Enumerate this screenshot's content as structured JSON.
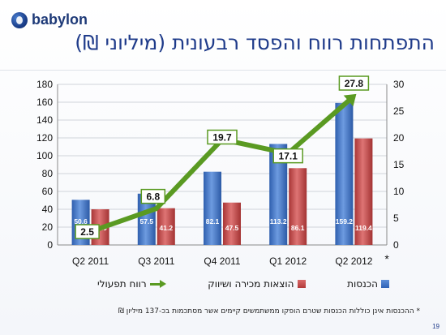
{
  "logo": {
    "text": "babylon"
  },
  "title": "התפתחות רווח והפסד רבעונית (מיליוני ₪)",
  "chart_data": {
    "type": "bar",
    "categories": [
      "Q2 2011",
      "Q3 2011",
      "Q4 2011",
      "Q1 2012",
      "Q2 2012"
    ],
    "series": [
      {
        "name": "הכנסות",
        "values": [
          50.6,
          57.5,
          82.1,
          113.2,
          159.2
        ],
        "axis": "left",
        "color": "#3b6fc4"
      },
      {
        "name": "הוצאות מכירה ושיווק",
        "values": [
          40.0,
          41.2,
          47.5,
          86.1,
          119.4
        ],
        "axis": "left",
        "color": "#c0504d"
      },
      {
        "name": "רווח תפעולי",
        "type": "line",
        "values": [
          2.5,
          6.8,
          19.7,
          17.1,
          27.8
        ],
        "axis": "right",
        "color": "#5a9a22"
      }
    ],
    "y_left": {
      "range": [
        0,
        180
      ],
      "ticks": [
        0,
        20,
        40,
        60,
        80,
        100,
        120,
        140,
        160,
        180
      ]
    },
    "y_right": {
      "range": [
        0,
        30
      ],
      "ticks": [
        0,
        5,
        10,
        15,
        20,
        25,
        30
      ]
    },
    "grid": "horizontal",
    "legend_position": "bottom",
    "category_note": {
      "category": "Q2 2012",
      "mark": "*"
    }
  },
  "legend": {
    "revenue": "הכנסות",
    "sales_expenses": "הוצאות מכירה ושיווק",
    "operating_profit": "רווח תפעולי"
  },
  "footnote": "* ההכנסות אינן כוללות הכנסות שטרם הופקו ממשתמשים קיימים אשר מסתכמות בכ-137 מיליון ₪",
  "page_number": "19"
}
